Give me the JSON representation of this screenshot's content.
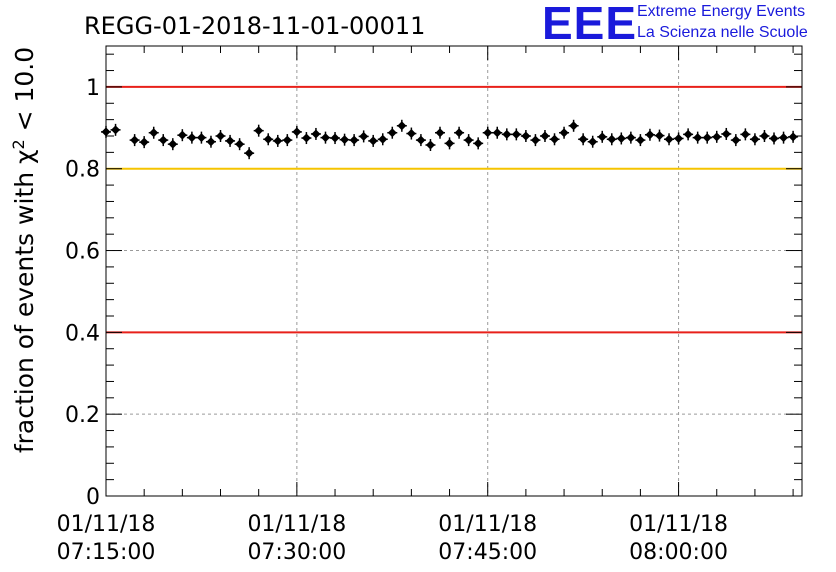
{
  "logo": {
    "mark": "EEE",
    "line1": "Extreme Energy Events",
    "line2": "La Scienza nelle Scuole"
  },
  "colors": {
    "frame": "#000000",
    "grid": "#9a9a9a",
    "threshold_red": "#e8201a",
    "threshold_yellow": "#f5c400",
    "points": "#000000",
    "logo": "#1a1adb"
  },
  "chart_data": {
    "type": "scatter",
    "title": "REGG-01-2018-11-01-00011",
    "ylabel_prefix": "fraction of events with ",
    "ylabel_chi": "χ",
    "ylabel_sup": "2",
    "ylabel_suffix": " < 10.0",
    "xlabel": "",
    "xlim_minutes": [
      0,
      54.7
    ],
    "ylim": [
      0,
      1.1
    ],
    "yticks": [
      0,
      0.2,
      0.4,
      0.6,
      0.8,
      1
    ],
    "ytick_labels": [
      "0",
      "0.2",
      "0.4",
      "0.6",
      "0.8",
      "1"
    ],
    "xticks": [
      {
        "minutes": 0,
        "date": "01/11/18",
        "time": "07:15:00"
      },
      {
        "minutes": 15,
        "date": "01/11/18",
        "time": "07:30:00"
      },
      {
        "minutes": 30,
        "date": "01/11/18",
        "time": "07:45:00"
      },
      {
        "minutes": 45,
        "date": "01/11/18",
        "time": "08:00:00"
      }
    ],
    "reference_lines": [
      {
        "y": 1.0,
        "color": "red"
      },
      {
        "y": 0.8,
        "color": "yellow"
      },
      {
        "y": 0.4,
        "color": "red"
      }
    ],
    "series": [
      {
        "name": "fraction",
        "x_minutes": [
          0.0,
          0.75,
          2.25,
          3.0,
          3.75,
          4.5,
          5.25,
          6.0,
          6.75,
          7.5,
          8.25,
          9.0,
          9.75,
          10.5,
          11.25,
          12.0,
          12.75,
          13.5,
          14.25,
          15.0,
          15.75,
          16.5,
          17.25,
          18.0,
          18.75,
          19.5,
          20.25,
          21.0,
          21.75,
          22.5,
          23.25,
          24.0,
          24.75,
          25.5,
          26.25,
          27.0,
          27.75,
          28.5,
          29.25,
          30.0,
          30.75,
          31.5,
          32.25,
          33.0,
          33.75,
          34.5,
          35.25,
          36.0,
          36.75,
          37.5,
          38.25,
          39.0,
          39.75,
          40.5,
          41.25,
          42.0,
          42.75,
          43.5,
          44.25,
          45.0,
          45.75,
          46.5,
          47.25,
          48.0,
          48.75,
          49.5,
          50.25,
          51.0,
          51.75,
          52.5,
          53.25,
          54.0
        ],
        "y": [
          0.89,
          0.895,
          0.87,
          0.865,
          0.888,
          0.87,
          0.86,
          0.882,
          0.876,
          0.876,
          0.866,
          0.88,
          0.868,
          0.86,
          0.838,
          0.893,
          0.872,
          0.868,
          0.87,
          0.89,
          0.875,
          0.885,
          0.876,
          0.875,
          0.871,
          0.87,
          0.879,
          0.868,
          0.872,
          0.888,
          0.905,
          0.886,
          0.87,
          0.858,
          0.888,
          0.862,
          0.888,
          0.87,
          0.862,
          0.888,
          0.888,
          0.884,
          0.884,
          0.88,
          0.87,
          0.88,
          0.872,
          0.888,
          0.905,
          0.872,
          0.866,
          0.878,
          0.872,
          0.874,
          0.876,
          0.87,
          0.883,
          0.881,
          0.872,
          0.874,
          0.884,
          0.876,
          0.876,
          0.878,
          0.885,
          0.87,
          0.884,
          0.872,
          0.88,
          0.874,
          0.876,
          0.878
        ]
      }
    ]
  }
}
